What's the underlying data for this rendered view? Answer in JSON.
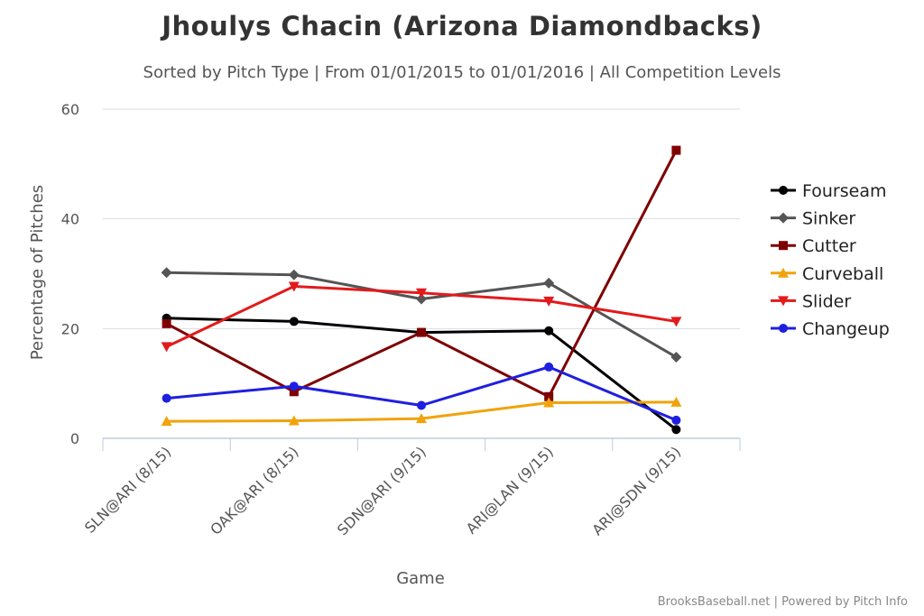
{
  "chart_data": {
    "type": "line",
    "title": "Jhoulys Chacin (Arizona Diamondbacks)",
    "subtitle": "Sorted by Pitch Type | From 01/01/2015 to 01/01/2016 | All Competition Levels",
    "xlabel": "Game",
    "ylabel": "Percentage of Pitches",
    "categories": [
      "SLN@ARI (8/15)",
      "OAK@ARI (8/15)",
      "SDN@ARI (9/15)",
      "ARI@LAN (9/15)",
      "ARI@SDN (9/15)"
    ],
    "ylim": [
      0,
      60
    ],
    "yticks": [
      0,
      20,
      40,
      60
    ],
    "grid": true,
    "legend_position": "right",
    "series": [
      {
        "name": "Fourseam",
        "color": "#000000",
        "marker": "circle",
        "values": [
          21.9,
          21.3,
          19.3,
          19.6,
          1.6
        ]
      },
      {
        "name": "Sinker",
        "color": "#555555",
        "marker": "diamond",
        "values": [
          30.2,
          29.8,
          25.4,
          28.3,
          14.8
        ]
      },
      {
        "name": "Cutter",
        "color": "#7f0000",
        "marker": "square",
        "values": [
          20.9,
          8.5,
          19.3,
          7.6,
          52.5
        ]
      },
      {
        "name": "Curveball",
        "color": "#f0a30a",
        "marker": "triangle",
        "values": [
          3.1,
          3.2,
          3.6,
          6.5,
          6.6
        ]
      },
      {
        "name": "Slider",
        "color": "#e31a1c",
        "marker": "triangle-down",
        "values": [
          16.7,
          27.7,
          26.5,
          25.0,
          21.3
        ]
      },
      {
        "name": "Changeup",
        "color": "#1f1fe0",
        "marker": "circle",
        "values": [
          7.3,
          9.5,
          6.0,
          13.0,
          3.3
        ]
      }
    ]
  },
  "credit": "BrooksBaseball.net | Powered by Pitch Info"
}
